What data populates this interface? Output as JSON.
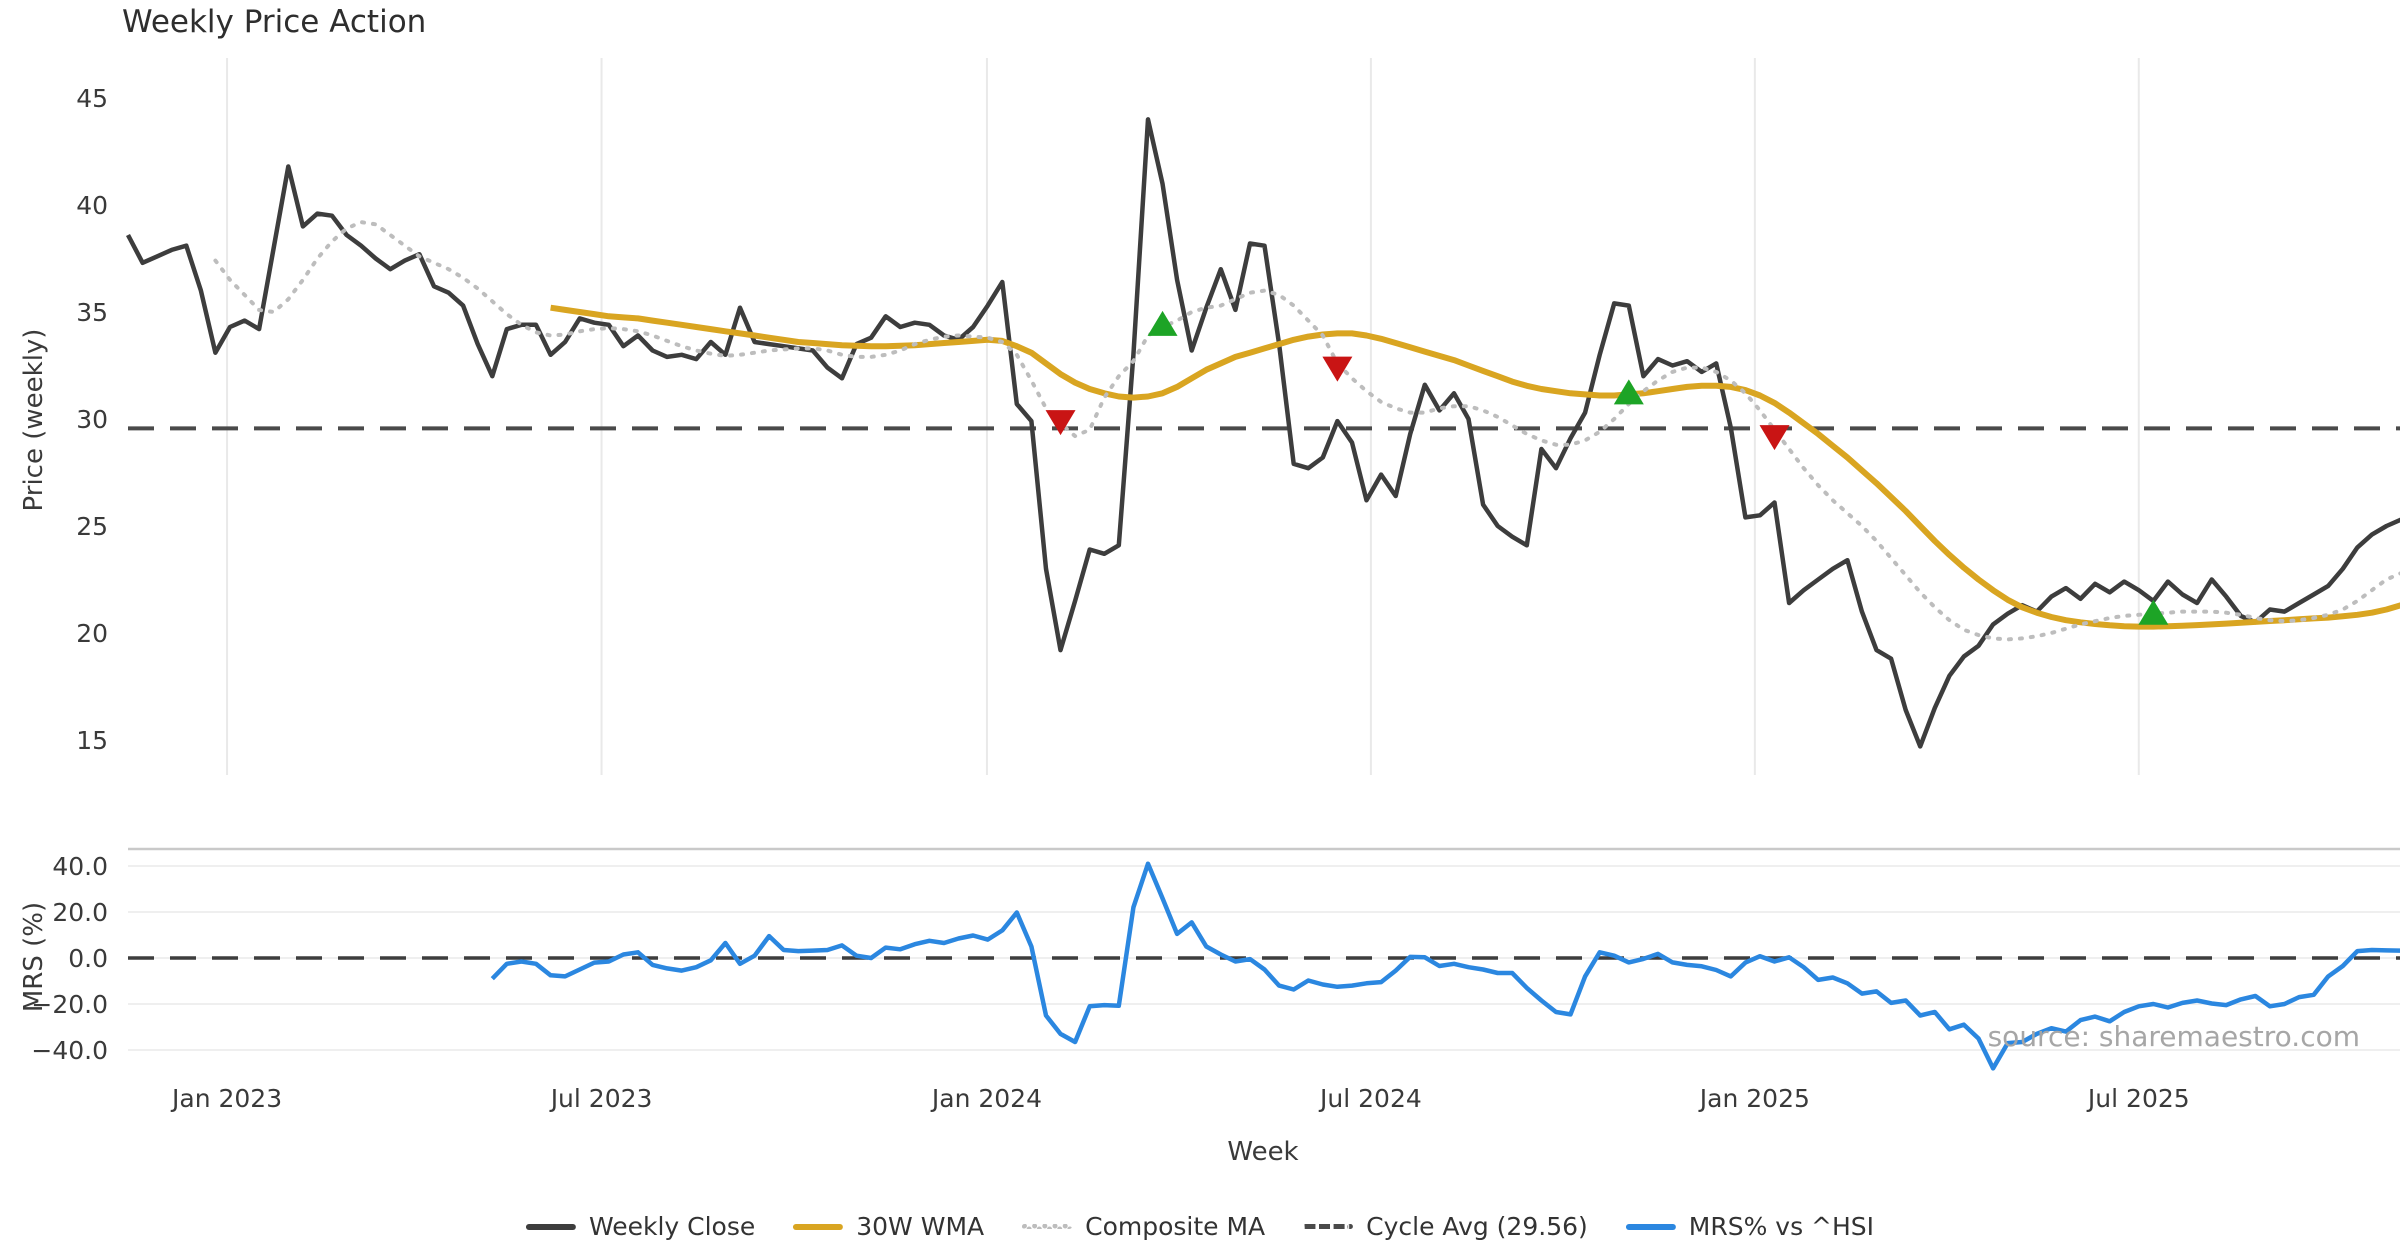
{
  "title": "Weekly Price Action",
  "watermark": "source: sharemaestro.com",
  "legend": {
    "items": [
      {
        "key": "weekly-close",
        "label": "Weekly Close",
        "color": "#3d3d3d",
        "style": "solid"
      },
      {
        "key": "wma",
        "label": "30W WMA",
        "color": "#d9a521",
        "style": "solid"
      },
      {
        "key": "composite-ma",
        "label": "Composite MA",
        "color": "#bdbdbd",
        "style": "dotted"
      },
      {
        "key": "cycle-avg",
        "label": "Cycle Avg (29.56)",
        "color": "#4a4a4a",
        "style": "dashed"
      },
      {
        "key": "mrs",
        "label": "MRS% vs ^HSI",
        "color": "#2b87e0",
        "style": "solid"
      }
    ]
  },
  "chart_data": {
    "type": "line",
    "xlabel": "Week",
    "x_ticks": [
      {
        "label": "Jan 2023",
        "week": 6.8
      },
      {
        "label": "Jul 2023",
        "week": 32.5
      },
      {
        "label": "Jan 2024",
        "week": 58.95
      },
      {
        "label": "Jul 2024",
        "week": 85.3
      },
      {
        "label": "Jan 2025",
        "week": 111.65
      },
      {
        "label": "Jul 2025",
        "week": 138.0
      }
    ],
    "panels": [
      {
        "name": "price",
        "ylabel": "Price (weekly)",
        "yticks": [
          45,
          40,
          35,
          30,
          25,
          20,
          15
        ],
        "ylim": [
          13.0,
          46.8
        ]
      },
      {
        "name": "mrs",
        "ylabel": "MRS (%)",
        "ytick_labels": [
          "40.0",
          "20.0",
          "0.0",
          "−20.0",
          "−40.0"
        ],
        "ytick_values": [
          40,
          20,
          0,
          -20,
          -40
        ],
        "ylim": [
          -50,
          45
        ]
      }
    ],
    "cycle_avg": 29.56,
    "series": [
      {
        "name": "Weekly Close",
        "panel": "price",
        "color": "#3d3d3d",
        "style": "solid",
        "width": 4.5,
        "start_week": 0,
        "values": [
          38.6,
          37.3,
          37.6,
          37.9,
          38.1,
          36.0,
          33.1,
          34.3,
          34.6,
          34.2,
          38.0,
          41.8,
          39.0,
          39.6,
          39.5,
          38.6,
          38.1,
          37.5,
          37.0,
          37.4,
          37.7,
          36.2,
          35.9,
          35.3,
          33.5,
          32.0,
          34.2,
          34.4,
          34.4,
          33.0,
          33.6,
          34.7,
          34.5,
          34.4,
          33.4,
          33.9,
          33.2,
          32.9,
          33.0,
          32.8,
          33.6,
          33.0,
          35.2,
          33.6,
          33.5,
          33.4,
          33.3,
          33.2,
          32.4,
          31.9,
          33.5,
          33.8,
          34.8,
          34.3,
          34.5,
          34.4,
          33.9,
          33.7,
          34.3,
          35.3,
          36.4,
          30.7,
          29.9,
          23.0,
          19.2,
          21.5,
          23.9,
          23.7,
          24.1,
          33.0,
          44.0,
          41.0,
          36.5,
          33.2,
          35.2,
          37.0,
          35.1,
          38.2,
          38.1,
          33.5,
          27.9,
          27.7,
          28.2,
          29.9,
          28.9,
          26.2,
          27.4,
          26.4,
          29.3,
          31.6,
          30.4,
          31.2,
          30.0,
          26.0,
          25.0,
          24.5,
          24.1,
          28.6,
          27.7,
          29.1,
          30.3,
          33.0,
          35.4,
          35.3,
          32.0,
          32.8,
          32.5,
          32.7,
          32.2,
          32.6,
          29.6,
          25.4,
          25.5,
          26.1,
          21.4,
          22.0,
          22.5,
          23.0,
          23.4,
          21.0,
          19.2,
          18.8,
          16.4,
          14.7,
          16.5,
          18.0,
          18.9,
          19.4,
          20.4,
          20.9,
          21.3,
          21.0,
          21.7,
          22.1,
          21.6,
          22.3,
          21.9,
          22.4,
          22.0,
          21.5,
          22.4,
          21.8,
          21.4,
          22.5,
          21.7,
          20.8,
          20.5,
          21.1,
          21.0,
          21.4,
          21.8,
          22.2,
          23.0,
          24.0,
          24.6,
          25.0,
          25.3
        ]
      },
      {
        "name": "30W WMA",
        "panel": "price",
        "color": "#d9a521",
        "style": "solid",
        "width": 6,
        "start_week": 29,
        "values": [
          35.2,
          35.1,
          35.0,
          34.9,
          34.8,
          34.75,
          34.7,
          34.6,
          34.5,
          34.4,
          34.3,
          34.2,
          34.1,
          34.0,
          33.9,
          33.8,
          33.7,
          33.6,
          33.55,
          33.5,
          33.45,
          33.42,
          33.4,
          33.4,
          33.42,
          33.45,
          33.5,
          33.55,
          33.6,
          33.65,
          33.7,
          33.65,
          33.4,
          33.1,
          32.6,
          32.1,
          31.7,
          31.4,
          31.2,
          31.05,
          31.0,
          31.05,
          31.2,
          31.5,
          31.9,
          32.3,
          32.6,
          32.9,
          33.1,
          33.3,
          33.5,
          33.7,
          33.85,
          33.95,
          34.0,
          34.0,
          33.9,
          33.75,
          33.55,
          33.35,
          33.15,
          32.95,
          32.75,
          32.5,
          32.25,
          32.0,
          31.75,
          31.55,
          31.4,
          31.3,
          31.2,
          31.15,
          31.1,
          31.1,
          31.15,
          31.2,
          31.3,
          31.4,
          31.5,
          31.55,
          31.55,
          31.5,
          31.35,
          31.1,
          30.75,
          30.3,
          29.8,
          29.3,
          28.75,
          28.2,
          27.6,
          27.0,
          26.35,
          25.7,
          25.0,
          24.3,
          23.65,
          23.05,
          22.5,
          22.0,
          21.55,
          21.2,
          20.95,
          20.75,
          20.6,
          20.5,
          20.42,
          20.36,
          20.32,
          20.3,
          20.3,
          20.32,
          20.34,
          20.37,
          20.4,
          20.44,
          20.48,
          20.52,
          20.56,
          20.6,
          20.64,
          20.68,
          20.72,
          20.78,
          20.85,
          20.95,
          21.1,
          21.3
        ]
      },
      {
        "name": "Composite MA",
        "panel": "price",
        "color": "#bdbdbd",
        "style": "dotted",
        "width": 4,
        "start_week": 6,
        "values": [
          37.4,
          36.5,
          35.8,
          35.1,
          35.0,
          35.6,
          36.5,
          37.5,
          38.3,
          38.9,
          39.2,
          39.1,
          38.6,
          38.1,
          37.6,
          37.3,
          37.0,
          36.6,
          36.1,
          35.5,
          34.9,
          34.4,
          34.05,
          33.9,
          33.95,
          34.1,
          34.2,
          34.25,
          34.2,
          34.1,
          33.9,
          33.65,
          33.4,
          33.2,
          33.05,
          32.95,
          33.0,
          33.1,
          33.2,
          33.25,
          33.3,
          33.3,
          33.2,
          33.0,
          32.9,
          32.9,
          33.0,
          33.2,
          33.5,
          33.7,
          33.85,
          33.9,
          33.85,
          33.8,
          33.6,
          33.0,
          31.8,
          30.5,
          29.8,
          29.2,
          29.5,
          31.0,
          32.0,
          32.7,
          33.9,
          34.3,
          34.6,
          35.0,
          35.2,
          35.3,
          35.6,
          35.9,
          36.0,
          35.8,
          35.3,
          34.6,
          33.9,
          32.6,
          31.9,
          31.3,
          30.8,
          30.5,
          30.3,
          30.3,
          30.5,
          30.6,
          30.6,
          30.4,
          30.1,
          29.7,
          29.3,
          29.0,
          28.8,
          28.8,
          29.0,
          29.4,
          30.0,
          30.7,
          31.3,
          31.8,
          32.2,
          32.4,
          32.4,
          32.2,
          31.8,
          31.2,
          30.4,
          29.5,
          28.6,
          27.7,
          26.9,
          26.2,
          25.6,
          25.0,
          24.3,
          23.5,
          22.7,
          21.9,
          21.2,
          20.6,
          20.15,
          19.9,
          19.75,
          19.7,
          19.75,
          19.85,
          20.0,
          20.2,
          20.4,
          20.55,
          20.7,
          20.8,
          20.85,
          20.9,
          20.95,
          21.0,
          21.0,
          21.0,
          20.95,
          20.85,
          20.7,
          20.6,
          20.55,
          20.6,
          20.7,
          20.85,
          21.1,
          21.5,
          22.0,
          22.5,
          22.8
        ]
      },
      {
        "name": "MRS% vs ^HSI",
        "panel": "mrs",
        "color": "#2b87e0",
        "style": "solid",
        "width": 4.5,
        "start_week": 25,
        "values": [
          -9.0,
          -2.5,
          -1.5,
          -2.5,
          -7.5,
          -8.0,
          -5.0,
          -2.0,
          -1.5,
          1.5,
          2.5,
          -3.0,
          -4.5,
          -5.5,
          -4.0,
          -1.0,
          6.5,
          -2.5,
          1.0,
          9.5,
          3.5,
          3.0,
          3.2,
          3.5,
          5.5,
          1.0,
          0.0,
          4.5,
          3.8,
          6.0,
          7.5,
          6.5,
          8.5,
          9.8,
          8.0,
          12.0,
          19.8,
          5.0,
          -25.0,
          -33.0,
          -36.5,
          -21.0,
          -20.5,
          -20.8,
          22.0,
          41.0,
          26.0,
          10.5,
          15.5,
          5.0,
          1.5,
          -1.5,
          -0.5,
          -5.0,
          -12.0,
          -13.7,
          -9.8,
          -11.5,
          -12.5,
          -12.0,
          -11.0,
          -10.5,
          -5.5,
          0.5,
          0.3,
          -3.5,
          -2.5,
          -4.0,
          -5.0,
          -6.5,
          -6.5,
          -13.0,
          -18.5,
          -23.5,
          -24.5,
          -8.0,
          2.5,
          1.0,
          -1.9,
          -0.4,
          1.8,
          -1.9,
          -3.0,
          -3.6,
          -5.2,
          -8.0,
          -2.0,
          0.8,
          -1.5,
          0.3,
          -4.0,
          -9.5,
          -8.5,
          -11.0,
          -15.5,
          -14.5,
          -19.5,
          -18.5,
          -25.0,
          -23.5,
          -31.0,
          -29.0,
          -35.0,
          -48.0,
          -37.0,
          -36.5,
          -33.0,
          -30.5,
          -32.0,
          -27.0,
          -25.5,
          -27.5,
          -23.5,
          -21.0,
          -20.0,
          -21.5,
          -19.5,
          -18.5,
          -19.8,
          -20.5,
          -18.0,
          -16.5,
          -21.0,
          -20.0,
          -17.0,
          -16.0,
          -8.0,
          -3.5,
          3.0,
          3.5,
          3.3,
          3.2
        ]
      }
    ],
    "signals": [
      {
        "type": "sell",
        "week": 64,
        "price": 29.9
      },
      {
        "type": "buy",
        "week": 71,
        "price": 34.4
      },
      {
        "type": "sell",
        "week": 83,
        "price": 32.4
      },
      {
        "type": "buy",
        "week": 103,
        "price": 31.2
      },
      {
        "type": "sell",
        "week": 113,
        "price": 29.2
      },
      {
        "type": "buy",
        "week": 139,
        "price": 20.9
      }
    ],
    "signal_colors": {
      "buy": "#1da426",
      "sell": "#c91414"
    }
  }
}
